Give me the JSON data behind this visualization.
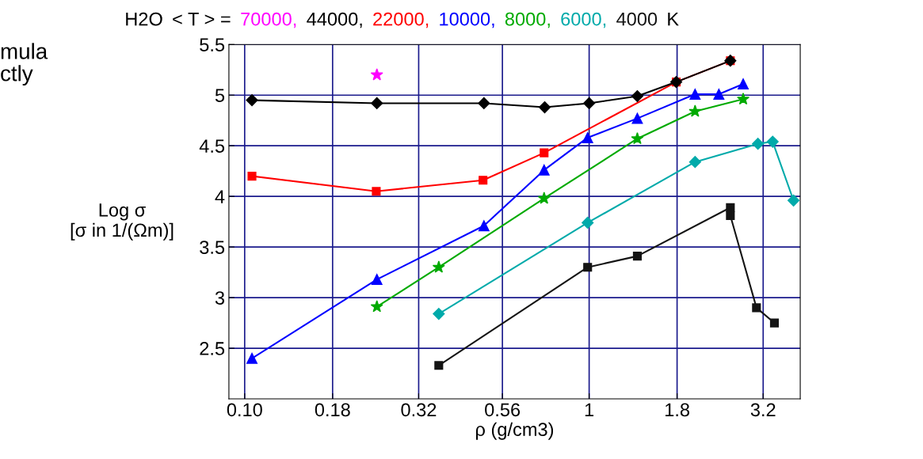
{
  "chart_data": {
    "type": "line",
    "title": "H2O",
    "legend_title": "< T > =",
    "xlabel": "ρ (g/cm3)",
    "ylabel": "Log σ\n[σ in 1/(Ωm)]",
    "annotations": [
      "K",
      "mula\nctly"
    ],
    "log": "x",
    "grid": true,
    "line_style": "solid",
    "legend": "top",
    "xlim": [
      0.09,
      4.1
    ],
    "ylim": [
      2.0,
      5.5
    ],
    "xticks": [
      {
        "value": 0.1,
        "label": "0.10"
      },
      0.18,
      0.32,
      0.56,
      1,
      1.8,
      3.2
    ],
    "yticks": [
      2.5,
      3,
      3.5,
      4,
      4.5,
      5,
      5.5
    ],
    "series": [
      {
        "name": "70000,",
        "color": "#ff00ff",
        "marker": "star",
        "type": "scatter",
        "x": [
          0.242
        ],
        "values": [
          5.2
        ]
      },
      {
        "name": "44000,",
        "color": "#000000",
        "marker": "diamond",
        "x": [
          0.105,
          0.242,
          0.495,
          0.743,
          1.0,
          1.38,
          1.79,
          2.57
        ],
        "values": [
          4.95,
          4.92,
          4.92,
          4.88,
          4.92,
          4.99,
          5.13,
          5.34
        ]
      },
      {
        "name": "22000,",
        "color": "#ff0000",
        "marker": "square",
        "x": [
          0.105,
          0.241,
          0.492,
          0.74,
          1.79,
          2.57
        ],
        "values": [
          4.2,
          4.05,
          4.16,
          4.43,
          5.13,
          5.34
        ]
      },
      {
        "name": "10000,",
        "color": "#0000ff",
        "marker": "triangle",
        "x": [
          0.105,
          0.242,
          0.495,
          0.74,
          0.99,
          1.38,
          2.03,
          2.38,
          2.8
        ],
        "values": [
          2.4,
          3.18,
          3.71,
          4.26,
          4.58,
          4.77,
          5.01,
          5.01,
          5.11
        ]
      },
      {
        "name": "8000,",
        "color": "#00aa00",
        "marker": "star",
        "x": [
          0.242,
          0.366,
          0.74,
          1.38,
          2.03,
          2.8
        ],
        "values": [
          2.91,
          3.3,
          3.98,
          4.57,
          4.84,
          4.96
        ]
      },
      {
        "name": "6000,",
        "color": "#00aaaa",
        "marker": "diamond",
        "x": [
          0.366,
          0.99,
          2.03,
          3.09,
          3.41,
          3.92
        ],
        "values": [
          2.84,
          3.74,
          4.34,
          4.52,
          4.54,
          3.96
        ]
      },
      {
        "name": "4000",
        "color": "#141414",
        "marker": "square",
        "x": [
          0.366,
          0.99,
          1.38,
          2.57,
          2.57,
          3.06,
          3.45
        ],
        "values": [
          2.33,
          3.3,
          3.41,
          3.89,
          3.81,
          2.9,
          2.75
        ]
      }
    ]
  }
}
